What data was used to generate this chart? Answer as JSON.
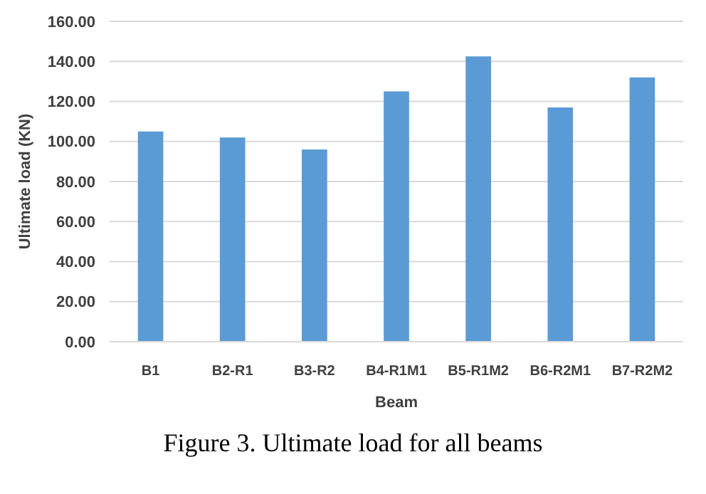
{
  "chart_data": {
    "type": "bar",
    "title": "Figure 3. Ultimate load for all beams",
    "xlabel": "Beam",
    "ylabel": "Ultimate load (KN)",
    "categories": [
      "B1",
      "B2-R1",
      "B3-R2",
      "B4-R1M1",
      "B5-R1M2",
      "B6-R2M1",
      "B7-R2M2"
    ],
    "values": [
      105,
      102,
      96,
      125,
      142.5,
      117,
      132
    ],
    "color": "#5b9bd5",
    "ylim": [
      0,
      160
    ],
    "yticks": [
      {
        "value": 0,
        "label": "0.00"
      },
      {
        "value": 20,
        "label": "20.00"
      },
      {
        "value": 40,
        "label": "40.00"
      },
      {
        "value": 60,
        "label": "60.00"
      },
      {
        "value": 80,
        "label": "80.00"
      },
      {
        "value": 100,
        "label": "100.00"
      },
      {
        "value": 120,
        "label": "120.00"
      },
      {
        "value": 140,
        "label": "140.00"
      },
      {
        "value": 160,
        "label": "160.00"
      }
    ],
    "grid": true
  }
}
